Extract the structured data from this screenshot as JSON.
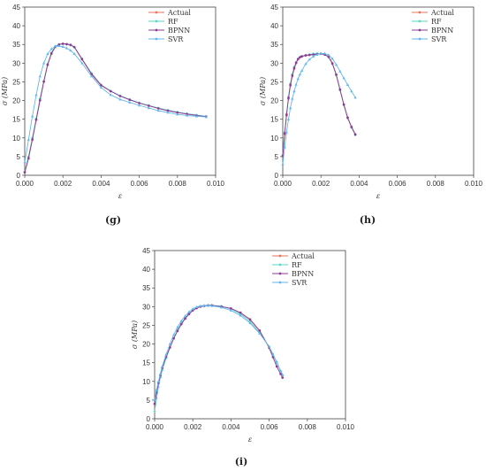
{
  "colors": {
    "Actual": "#e8735a",
    "RF": "#5bd6c6",
    "BPNN": "#8b3a96",
    "SVR": "#63b6ee"
  },
  "chart_data": [
    {
      "type": "line",
      "panel_label": "(g)",
      "xlabel": "ε",
      "ylabel": "σ (MPa)",
      "xlim": [
        0,
        0.01
      ],
      "ylim": [
        0,
        45
      ],
      "xticks": [
        "0.000",
        "0.002",
        "0.004",
        "0.006",
        "0.008",
        "0.010"
      ],
      "yticks": [
        "0",
        "5",
        "10",
        "15",
        "20",
        "25",
        "30",
        "35",
        "40",
        "45"
      ],
      "legend_position": "top-right",
      "series": [
        {
          "name": "Actual",
          "x": [
            0,
            0.0002,
            0.0004,
            0.0006,
            0.0008,
            0.001,
            0.0012,
            0.0014,
            0.0016,
            0.0018,
            0.002,
            0.0022,
            0.0024,
            0.0026,
            0.003,
            0.0035,
            0.004,
            0.0045,
            0.005,
            0.0055,
            0.006,
            0.0065,
            0.007,
            0.0075,
            0.008,
            0.0085,
            0.009,
            0.0095
          ],
          "y": [
            0.8,
            4.5,
            9.5,
            14.8,
            20,
            25,
            29.5,
            32.5,
            34.3,
            35,
            35.2,
            35.1,
            34.9,
            34.3,
            31,
            27,
            24,
            22.5,
            21.2,
            20.2,
            19.3,
            18.6,
            17.9,
            17.3,
            16.8,
            16.4,
            16,
            15.7
          ]
        },
        {
          "name": "RF",
          "x": [
            0,
            0.0002,
            0.0004,
            0.0006,
            0.0008,
            0.001,
            0.0012,
            0.0014,
            0.0016,
            0.0018,
            0.002,
            0.0022,
            0.0024,
            0.0026,
            0.003,
            0.0035,
            0.004,
            0.0045,
            0.005,
            0.0055,
            0.006,
            0.0065,
            0.007,
            0.0075,
            0.008,
            0.0085,
            0.009,
            0.0095
          ],
          "y": [
            1,
            5,
            10,
            15.2,
            20.5,
            25.2,
            29.8,
            32.8,
            34.5,
            35,
            35.1,
            35,
            34.8,
            34.2,
            31.2,
            27.3,
            24.2,
            22.6,
            21.3,
            20.3,
            19.4,
            18.7,
            18,
            17.4,
            16.9,
            16.5,
            16.1,
            15.8
          ]
        },
        {
          "name": "BPNN",
          "x": [
            0,
            0.0002,
            0.0004,
            0.0006,
            0.0008,
            0.001,
            0.0012,
            0.0014,
            0.0016,
            0.0018,
            0.002,
            0.0022,
            0.0024,
            0.0026,
            0.003,
            0.0035,
            0.004,
            0.0045,
            0.005,
            0.0055,
            0.006,
            0.0065,
            0.007,
            0.0075,
            0.008,
            0.0085,
            0.009,
            0.0095
          ],
          "y": [
            0.8,
            4.6,
            9.6,
            14.9,
            20.1,
            25.1,
            29.6,
            32.6,
            34.4,
            35,
            35.2,
            35.1,
            34.9,
            34.3,
            31.1,
            27.1,
            24.1,
            22.5,
            21.2,
            20.2,
            19.3,
            18.6,
            17.9,
            17.3,
            16.8,
            16.4,
            16,
            15.7
          ]
        },
        {
          "name": "SVR",
          "x": [
            0,
            0.0002,
            0.0004,
            0.0006,
            0.0008,
            0.001,
            0.0012,
            0.0014,
            0.0016,
            0.0018,
            0.002,
            0.0022,
            0.0024,
            0.0026,
            0.003,
            0.0035,
            0.004,
            0.0045,
            0.005,
            0.0055,
            0.006,
            0.0065,
            0.007,
            0.0075,
            0.008,
            0.0085,
            0.009,
            0.0095
          ],
          "y": [
            3.5,
            9.5,
            15.8,
            21.5,
            26.5,
            30,
            32.5,
            33.8,
            34.5,
            34.6,
            34.4,
            34,
            33.4,
            32.5,
            30,
            26.5,
            23.5,
            21.5,
            20.3,
            19.5,
            18.7,
            18,
            17.3,
            16.8,
            16.3,
            16,
            15.8,
            15.6
          ]
        }
      ]
    },
    {
      "type": "line",
      "panel_label": "(h)",
      "xlabel": "ε",
      "ylabel": "σ (MPa)",
      "xlim": [
        0,
        0.01
      ],
      "ylim": [
        0,
        45
      ],
      "xticks": [
        "0.000",
        "0.002",
        "0.004",
        "0.006",
        "0.008",
        "0.010"
      ],
      "yticks": [
        "0",
        "5",
        "10",
        "15",
        "20",
        "25",
        "30",
        "35",
        "40",
        "45"
      ],
      "legend_position": "top-right",
      "series": [
        {
          "name": "Actual",
          "x": [
            0,
            0.0001,
            0.0002,
            0.0003,
            0.0004,
            0.0005,
            0.0006,
            0.0007,
            0.0008,
            0.0009,
            0.001,
            0.0012,
            0.0014,
            0.0016,
            0.0018,
            0.002,
            0.0022,
            0.0024,
            0.0026,
            0.0028,
            0.003,
            0.0032,
            0.0034,
            0.0036,
            0.0038
          ],
          "y": [
            5,
            11,
            16,
            20.5,
            24,
            26.5,
            28.5,
            30,
            31,
            31.5,
            31.8,
            32,
            32.2,
            32.3,
            32.4,
            32.5,
            32.3,
            31.8,
            30,
            27,
            23,
            19,
            15.5,
            13,
            11
          ]
        },
        {
          "name": "RF",
          "x": [
            0,
            0.0001,
            0.0002,
            0.0003,
            0.0004,
            0.0005,
            0.0006,
            0.0007,
            0.0008,
            0.0009,
            0.001,
            0.0012,
            0.0014,
            0.0016,
            0.0018,
            0.002,
            0.0022,
            0.0024,
            0.0026,
            0.0028,
            0.003,
            0.0032,
            0.0034,
            0.0036,
            0.0038
          ],
          "y": [
            5.5,
            11.5,
            16.5,
            21,
            24.5,
            27,
            29,
            30.3,
            31.2,
            31.6,
            31.9,
            32.1,
            32.3,
            32.5,
            32.6,
            32.6,
            32.4,
            31.6,
            29.8,
            26.8,
            22.8,
            18.8,
            15.3,
            12.8,
            10.8
          ]
        },
        {
          "name": "BPNN",
          "x": [
            0,
            0.0001,
            0.0002,
            0.0003,
            0.0004,
            0.0005,
            0.0006,
            0.0007,
            0.0008,
            0.0009,
            0.001,
            0.0012,
            0.0014,
            0.0016,
            0.0018,
            0.002,
            0.0022,
            0.0024,
            0.0026,
            0.0028,
            0.003,
            0.0032,
            0.0034,
            0.0036,
            0.0038
          ],
          "y": [
            5.2,
            11.2,
            16.2,
            20.7,
            24.2,
            26.7,
            28.7,
            30.1,
            31.1,
            31.6,
            31.8,
            32.1,
            32.2,
            32.3,
            32.4,
            32.5,
            32.3,
            31.7,
            29.9,
            26.9,
            22.9,
            18.9,
            15.4,
            12.9,
            10.9
          ]
        },
        {
          "name": "SVR",
          "x": [
            0,
            0.0001,
            0.0002,
            0.0003,
            0.0004,
            0.0005,
            0.0006,
            0.0007,
            0.0008,
            0.0009,
            0.001,
            0.0012,
            0.0014,
            0.0016,
            0.0018,
            0.002,
            0.0022,
            0.0024,
            0.0026,
            0.0028,
            0.003,
            0.0032,
            0.0034,
            0.0036,
            0.0038
          ],
          "y": [
            3,
            7.5,
            11.5,
            15,
            18,
            20.5,
            22.5,
            24.3,
            25.8,
            27,
            28,
            29.8,
            31,
            31.8,
            32.3,
            32.6,
            32.6,
            32.2,
            31.2,
            29.6,
            27.8,
            26,
            24.2,
            22.5,
            20.8
          ]
        }
      ]
    },
    {
      "type": "line",
      "panel_label": "(i)",
      "xlabel": "ε",
      "ylabel": "σ (MPa)",
      "xlim": [
        0,
        0.01
      ],
      "ylim": [
        0,
        45
      ],
      "xticks": [
        "0.000",
        "0.002",
        "0.004",
        "0.006",
        "0.008",
        "0.010"
      ],
      "yticks": [
        "0",
        "5",
        "10",
        "15",
        "20",
        "25",
        "30",
        "35",
        "40",
        "45"
      ],
      "legend_position": "top-right",
      "series": [
        {
          "name": "Actual",
          "x": [
            0,
            0.0001,
            0.0002,
            0.0003,
            0.0004,
            0.0006,
            0.0008,
            0.001,
            0.0012,
            0.0014,
            0.0016,
            0.0018,
            0.002,
            0.0022,
            0.0024,
            0.0026,
            0.0028,
            0.003,
            0.0035,
            0.004,
            0.0045,
            0.005,
            0.0055,
            0.006,
            0.0062,
            0.0064,
            0.0066,
            0.0067
          ],
          "y": [
            4,
            7,
            9.5,
            11.5,
            13.5,
            16.5,
            19,
            21.5,
            23.5,
            25.3,
            26.8,
            28,
            29,
            29.6,
            30,
            30.2,
            30.3,
            30.3,
            30,
            29.5,
            28.3,
            26.5,
            23.5,
            19,
            16.5,
            14,
            12,
            11
          ]
        },
        {
          "name": "RF",
          "x": [
            0,
            0.0001,
            0.0002,
            0.0003,
            0.0004,
            0.0006,
            0.0008,
            0.001,
            0.0012,
            0.0014,
            0.0016,
            0.0018,
            0.002,
            0.0022,
            0.0024,
            0.0026,
            0.0028,
            0.003,
            0.0035,
            0.004,
            0.0045,
            0.005,
            0.0055,
            0.006,
            0.0062,
            0.0064,
            0.0066,
            0.0067
          ],
          "y": [
            2,
            5.5,
            8.5,
            11,
            13,
            16.2,
            19,
            21.6,
            23.8,
            25.6,
            27,
            28.2,
            29.1,
            29.7,
            30.1,
            30.3,
            30.4,
            30.4,
            30.1,
            29.4,
            28,
            26,
            23,
            19.3,
            17.3,
            15.2,
            12.8,
            11.5
          ]
        },
        {
          "name": "BPNN",
          "x": [
            0,
            0.0001,
            0.0002,
            0.0003,
            0.0004,
            0.0006,
            0.0008,
            0.001,
            0.0012,
            0.0014,
            0.0016,
            0.0018,
            0.002,
            0.0022,
            0.0024,
            0.0026,
            0.0028,
            0.003,
            0.0035,
            0.004,
            0.0045,
            0.005,
            0.0055,
            0.006,
            0.0062,
            0.0064,
            0.0066,
            0.0067
          ],
          "y": [
            4,
            7,
            9.6,
            11.6,
            13.6,
            16.6,
            19.1,
            21.5,
            23.5,
            25.3,
            26.8,
            28,
            29,
            29.6,
            30,
            30.2,
            30.3,
            30.3,
            30,
            29.5,
            28.4,
            26.6,
            23.6,
            19,
            16.5,
            14,
            12,
            11
          ]
        },
        {
          "name": "SVR",
          "x": [
            0,
            0.0001,
            0.0002,
            0.0003,
            0.0004,
            0.0006,
            0.0008,
            0.001,
            0.0012,
            0.0014,
            0.0016,
            0.0018,
            0.002,
            0.0022,
            0.0024,
            0.0026,
            0.0028,
            0.003,
            0.0035,
            0.004,
            0.0045,
            0.005,
            0.0055,
            0.006,
            0.0062,
            0.0064,
            0.0066,
            0.0067
          ],
          "y": [
            5,
            7.8,
            10,
            12,
            14,
            17.2,
            20,
            22.5,
            24.5,
            26.2,
            27.5,
            28.6,
            29.4,
            29.9,
            30.2,
            30.3,
            30.3,
            30.2,
            29.8,
            29,
            27.6,
            25.6,
            22.8,
            19.3,
            17.2,
            15,
            12.8,
            11.8
          ]
        }
      ]
    }
  ]
}
